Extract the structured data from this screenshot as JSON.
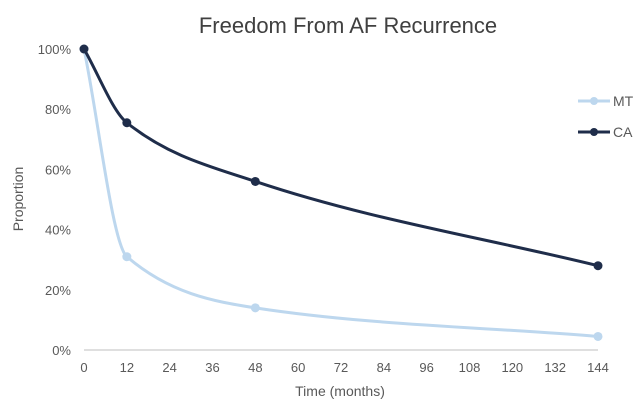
{
  "chart_data": {
    "type": "line",
    "title": "Freedom From AF Recurrence",
    "xlabel": "Time (months)",
    "ylabel": "Proportion",
    "xlim": [
      0,
      144
    ],
    "ylim": [
      0,
      100
    ],
    "x_ticks": [
      0,
      12,
      24,
      36,
      48,
      60,
      72,
      84,
      96,
      108,
      120,
      132,
      144
    ],
    "x_tick_labels": [
      "0",
      "12",
      "24",
      "36",
      "48",
      "60",
      "72",
      "84",
      "96",
      "108",
      "120",
      "132",
      "144"
    ],
    "y_ticks": [
      0,
      20,
      40,
      60,
      80,
      100
    ],
    "y_tick_labels": [
      "0%",
      "20%",
      "40%",
      "60%",
      "80%",
      "100%"
    ],
    "grid": false,
    "legend_position": "right",
    "series": [
      {
        "name": "MT",
        "color": "#bdd7ee",
        "x": [
          0,
          12,
          48,
          144
        ],
        "values": [
          100,
          31,
          14,
          4.5
        ]
      },
      {
        "name": "CA",
        "color": "#1f2d4a",
        "x": [
          0,
          12,
          48,
          144
        ],
        "values": [
          100,
          75.5,
          56,
          28
        ]
      }
    ]
  }
}
